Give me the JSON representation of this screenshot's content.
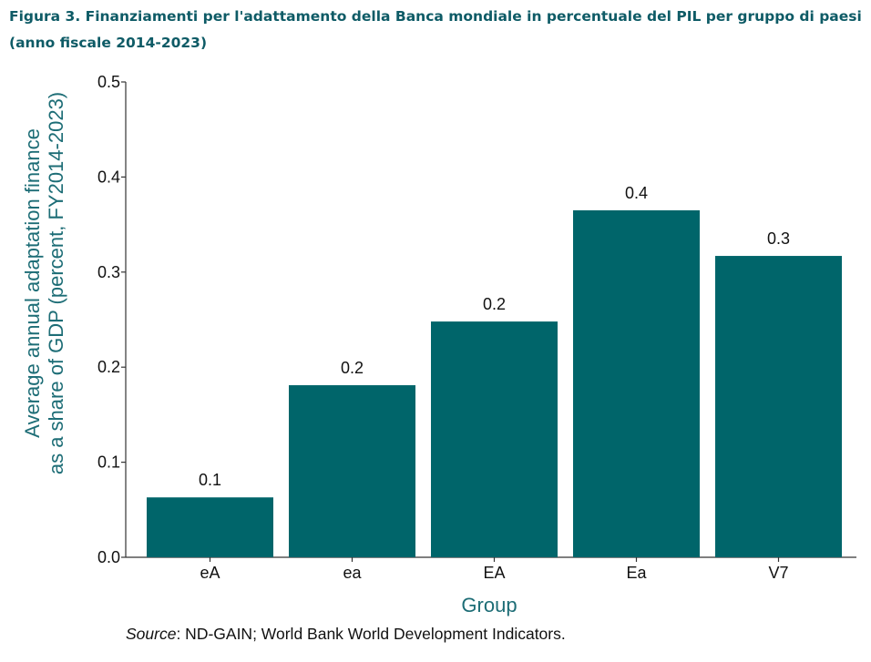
{
  "figure": {
    "title_line1": "Figura 3. Finanziamenti per l'adattamento della Banca mondiale in percentuale del PIL per gruppo di paesi",
    "title_line2": "(anno fiscale 2014-2023)",
    "source_label": "Source",
    "source_text": ": ND-GAIN; World Bank World Development Indicators."
  },
  "colors": {
    "bar": "#00656a",
    "axis_label": "#1d6d76",
    "title": "#0e5b66",
    "text": "#111111"
  },
  "chart_data": {
    "type": "bar",
    "categories": [
      "eA",
      "ea",
      "EA",
      "Ea",
      "V7"
    ],
    "values": [
      0.063,
      0.181,
      0.248,
      0.365,
      0.317
    ],
    "data_labels": [
      "0.1",
      "0.2",
      "0.2",
      "0.4",
      "0.3"
    ],
    "xlabel": "Group",
    "ylabel_line1": "Average annual adaptation finance",
    "ylabel_line2": "as a share of GDP (percent, FY2014-2023)",
    "ylim": [
      0,
      0.5
    ],
    "yticks": [
      "0.0",
      "0.1",
      "0.2",
      "0.3",
      "0.4",
      "0.5"
    ],
    "grid": false,
    "legend": "none"
  }
}
